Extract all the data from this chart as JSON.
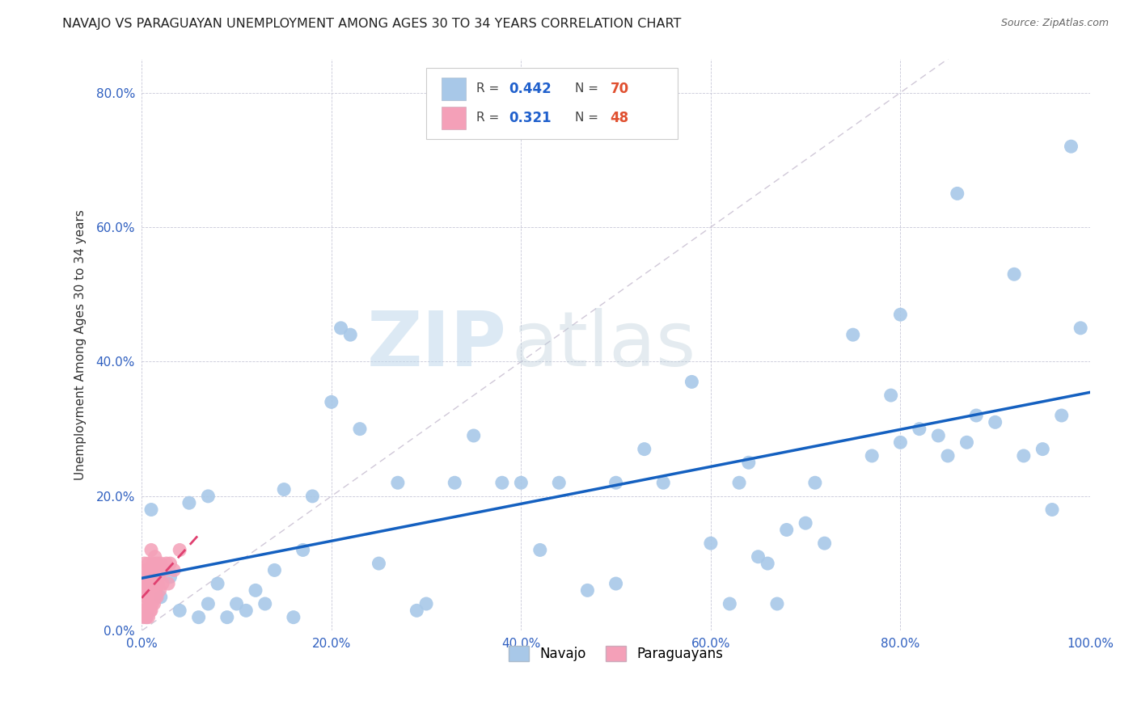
{
  "title": "NAVAJO VS PARAGUAYAN UNEMPLOYMENT AMONG AGES 30 TO 34 YEARS CORRELATION CHART",
  "source": "Source: ZipAtlas.com",
  "ylabel": "Unemployment Among Ages 30 to 34 years",
  "xlim": [
    0.0,
    1.0
  ],
  "ylim": [
    0.0,
    0.85
  ],
  "xticks": [
    0.0,
    0.2,
    0.4,
    0.6,
    0.8,
    1.0
  ],
  "xticklabels": [
    "0.0%",
    "20.0%",
    "40.0%",
    "60.0%",
    "80.0%",
    "100.0%"
  ],
  "yticks": [
    0.0,
    0.2,
    0.4,
    0.6,
    0.8
  ],
  "yticklabels": [
    "0.0%",
    "20.0%",
    "40.0%",
    "60.0%",
    "80.0%"
  ],
  "navajo_R": 0.442,
  "navajo_N": 70,
  "paraguayan_R": 0.321,
  "paraguayan_N": 48,
  "navajo_color": "#a8c8e8",
  "paraguayan_color": "#f4a0b8",
  "navajo_line_color": "#1460c0",
  "paraguayan_line_color": "#e04070",
  "diagonal_color": "#d0c8d8",
  "background_color": "#ffffff",
  "watermark_zip": "ZIP",
  "watermark_atlas": "atlas",
  "navajo_x": [
    0.005,
    0.01,
    0.02,
    0.03,
    0.04,
    0.05,
    0.06,
    0.07,
    0.07,
    0.08,
    0.09,
    0.1,
    0.11,
    0.12,
    0.13,
    0.14,
    0.15,
    0.16,
    0.17,
    0.18,
    0.2,
    0.21,
    0.22,
    0.23,
    0.25,
    0.27,
    0.29,
    0.3,
    0.33,
    0.35,
    0.38,
    0.4,
    0.42,
    0.44,
    0.47,
    0.5,
    0.5,
    0.53,
    0.55,
    0.58,
    0.6,
    0.62,
    0.63,
    0.64,
    0.65,
    0.66,
    0.67,
    0.68,
    0.7,
    0.71,
    0.72,
    0.75,
    0.77,
    0.79,
    0.8,
    0.8,
    0.82,
    0.84,
    0.85,
    0.86,
    0.87,
    0.88,
    0.9,
    0.92,
    0.93,
    0.95,
    0.96,
    0.97,
    0.98,
    0.99
  ],
  "navajo_y": [
    0.02,
    0.18,
    0.05,
    0.08,
    0.03,
    0.19,
    0.02,
    0.04,
    0.2,
    0.07,
    0.02,
    0.04,
    0.03,
    0.06,
    0.04,
    0.09,
    0.21,
    0.02,
    0.12,
    0.2,
    0.34,
    0.45,
    0.44,
    0.3,
    0.1,
    0.22,
    0.03,
    0.04,
    0.22,
    0.29,
    0.22,
    0.22,
    0.12,
    0.22,
    0.06,
    0.07,
    0.22,
    0.27,
    0.22,
    0.37,
    0.13,
    0.04,
    0.22,
    0.25,
    0.11,
    0.1,
    0.04,
    0.15,
    0.16,
    0.22,
    0.13,
    0.44,
    0.26,
    0.35,
    0.47,
    0.28,
    0.3,
    0.29,
    0.26,
    0.65,
    0.28,
    0.32,
    0.31,
    0.53,
    0.26,
    0.27,
    0.18,
    0.32,
    0.72,
    0.45
  ],
  "paraguayan_x": [
    0.001,
    0.001,
    0.002,
    0.002,
    0.003,
    0.003,
    0.004,
    0.004,
    0.005,
    0.005,
    0.005,
    0.006,
    0.006,
    0.007,
    0.007,
    0.007,
    0.008,
    0.008,
    0.009,
    0.009,
    0.009,
    0.01,
    0.01,
    0.01,
    0.011,
    0.011,
    0.012,
    0.012,
    0.013,
    0.013,
    0.014,
    0.014,
    0.015,
    0.015,
    0.016,
    0.016,
    0.017,
    0.018,
    0.019,
    0.02,
    0.021,
    0.022,
    0.024,
    0.026,
    0.028,
    0.03,
    0.034,
    0.04
  ],
  "paraguayan_y": [
    0.03,
    0.06,
    0.02,
    0.08,
    0.04,
    0.1,
    0.03,
    0.07,
    0.02,
    0.05,
    0.09,
    0.03,
    0.07,
    0.02,
    0.06,
    0.1,
    0.04,
    0.08,
    0.03,
    0.06,
    0.09,
    0.03,
    0.07,
    0.12,
    0.04,
    0.08,
    0.05,
    0.1,
    0.04,
    0.08,
    0.05,
    0.11,
    0.06,
    0.09,
    0.05,
    0.1,
    0.07,
    0.08,
    0.06,
    0.1,
    0.09,
    0.07,
    0.09,
    0.1,
    0.07,
    0.1,
    0.09,
    0.12
  ],
  "tick_color": "#3060c0",
  "grid_color": "#c8c8d8",
  "title_fontsize": 11.5,
  "source_fontsize": 9,
  "tick_fontsize": 11,
  "ylabel_fontsize": 11
}
